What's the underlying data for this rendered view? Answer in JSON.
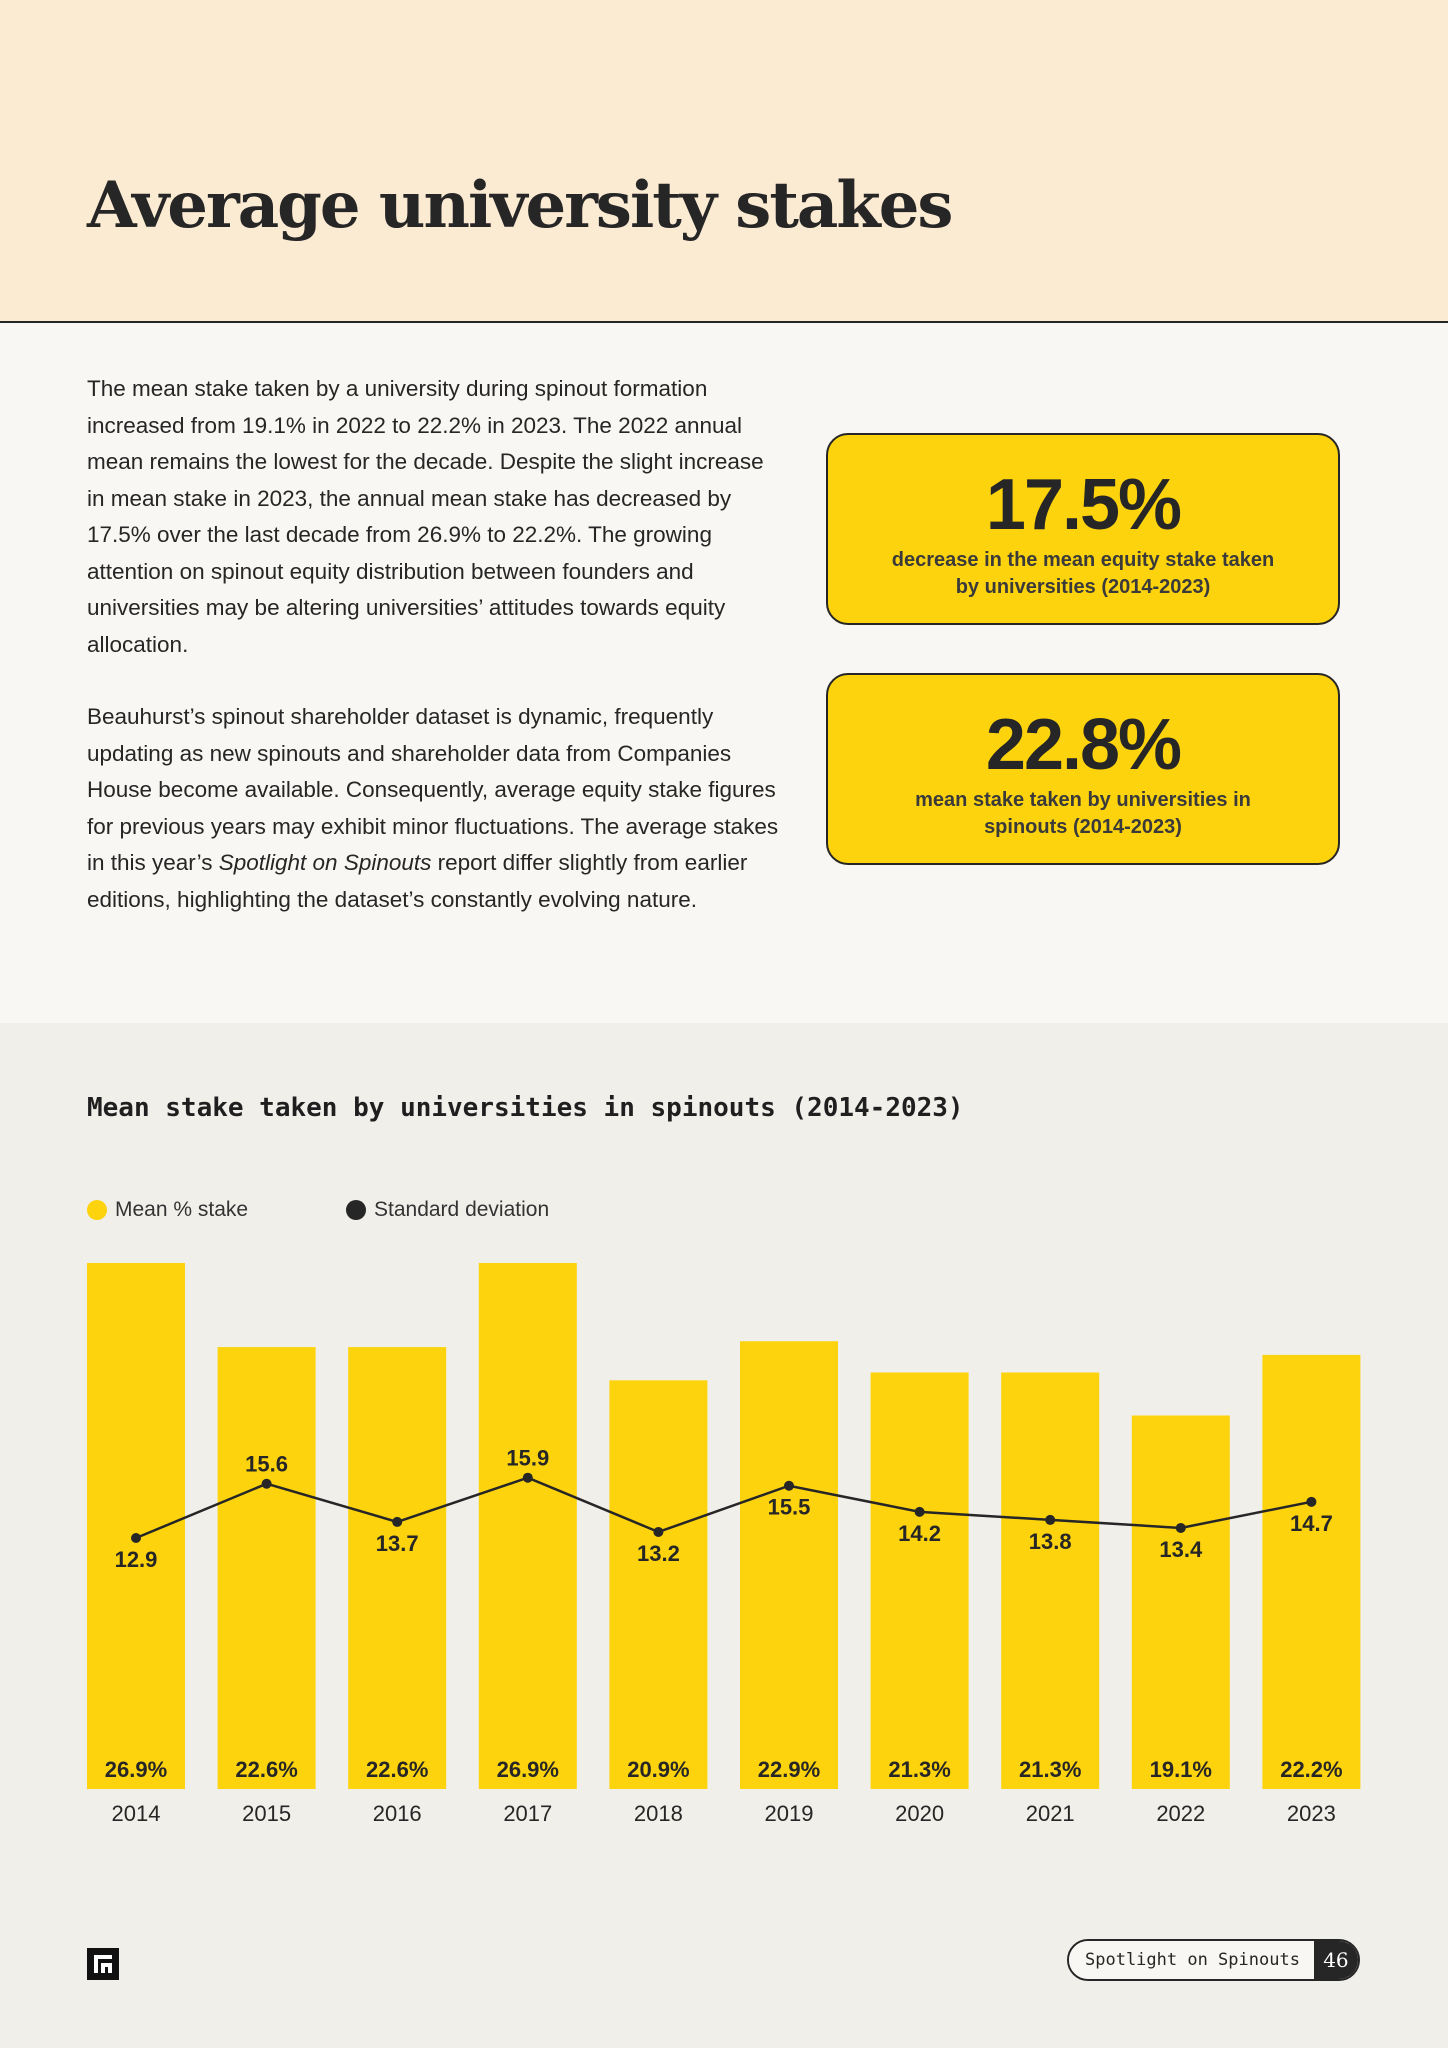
{
  "header": {
    "title": "Average university stakes"
  },
  "intro": {
    "paragraph_1": "The mean stake taken by a university during spinout formation increased from 19.1% in 2022 to 22.2% in 2023. The 2022 annual mean remains the lowest for the decade. Despite the slight increase in mean stake in 2023, the annual mean stake has decreased by 17.5% over the last decade from 26.9% to 22.2%. The growing attention on spinout equity distribution between founders and universities may be altering universities’ attitudes towards equity allocation.",
    "paragraph_2_start": "Beauhurst’s spinout shareholder dataset is dynamic, frequently updating as new spinouts and shareholder data from Companies House become available. Consequently, average equity stake figures for previous years may exhibit minor fluctuations. The average stakes in this year’s ",
    "paragraph_2_report": "Spotlight on Spinouts",
    "paragraph_2_end": " report differ slightly from earlier editions, highlighting the dataset’s constantly evolving nature."
  },
  "callouts": [
    {
      "value": "17.5%",
      "label": "decrease in the mean equity stake taken by universities (2014-2023)"
    },
    {
      "value": "22.8%",
      "label": "mean stake taken by universities in spinouts (2014-2023)"
    }
  ],
  "chart_data": {
    "type": "bar",
    "title": "Mean stake taken by universities in spinouts (2014-2023)",
    "categories": [
      "2014",
      "2015",
      "2016",
      "2017",
      "2018",
      "2019",
      "2020",
      "2021",
      "2022",
      "2023"
    ],
    "series": [
      {
        "name": "Mean % stake",
        "type": "bar",
        "color": "#fdd30d",
        "values": [
          26.9,
          22.6,
          22.6,
          26.9,
          20.9,
          22.9,
          21.3,
          21.3,
          19.1,
          22.2
        ]
      },
      {
        "name": "Standard deviation",
        "type": "line",
        "color": "#262626",
        "values": [
          12.9,
          15.6,
          13.7,
          15.9,
          13.2,
          15.5,
          14.2,
          13.8,
          13.4,
          14.7
        ]
      }
    ],
    "ylim": [
      0,
      26.9
    ],
    "grid": false,
    "legend_position": "top-left"
  },
  "footer": {
    "logo_icon": "beauhurst-logo-icon",
    "report_name": "Spotlight on Spinouts",
    "page_number": "46"
  },
  "colors": {
    "accent": "#fdd30d",
    "ink": "#262626",
    "header_bg": "#fcebd3"
  }
}
